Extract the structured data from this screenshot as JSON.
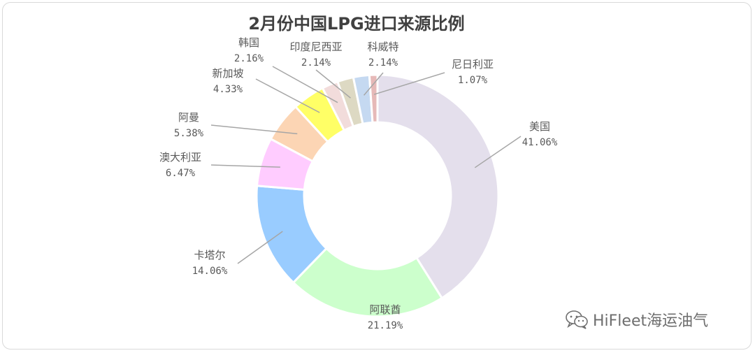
{
  "chart_data": {
    "type": "pie",
    "donut": true,
    "title": "2月份中国LPG进口来源比例",
    "unit": "%",
    "slices": [
      {
        "label": "美国",
        "value": 41.06,
        "pct_text": "41.06%",
        "color": "#e4dfec"
      },
      {
        "label": "阿联酋",
        "value": 21.19,
        "pct_text": "21.19%",
        "color": "#ccffcc"
      },
      {
        "label": "卡塔尔",
        "value": 14.06,
        "pct_text": "14.06%",
        "color": "#99ccff"
      },
      {
        "label": "澳大利亚",
        "value": 6.47,
        "pct_text": "6.47%",
        "color": "#ffccff"
      },
      {
        "label": "阿曼",
        "value": 5.38,
        "pct_text": "5.38%",
        "color": "#fcd5b4"
      },
      {
        "label": "新加坡",
        "value": 4.33,
        "pct_text": "4.33%",
        "color": "#ffff66"
      },
      {
        "label": "韩国",
        "value": 2.16,
        "pct_text": "2.16%",
        "color": "#f2dcdb"
      },
      {
        "label": "印度尼西亚",
        "value": 2.14,
        "pct_text": "2.14%",
        "color": "#ddd9c3"
      },
      {
        "label": "科威特",
        "value": 2.14,
        "pct_text": "2.14%",
        "color": "#c5d9f1"
      },
      {
        "label": "尼日利亚",
        "value": 1.07,
        "pct_text": "1.07%",
        "color": "#e6b9b8"
      }
    ]
  },
  "watermark": {
    "text": "HiFleet海运油气",
    "icon": "wechat-icon"
  }
}
